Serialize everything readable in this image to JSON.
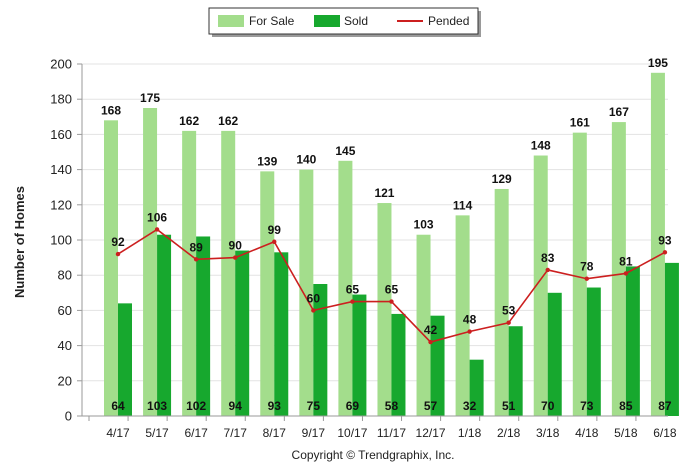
{
  "chart_data": {
    "type": "bar",
    "title": "",
    "xlabel": "",
    "ylabel": "Number of Homes",
    "ylim": [
      0,
      200
    ],
    "yticks": [
      0,
      20,
      40,
      60,
      80,
      100,
      120,
      140,
      160,
      180,
      200
    ],
    "grid": true,
    "legend_position": "top-center",
    "categories": [
      "4/17",
      "5/17",
      "6/17",
      "7/17",
      "8/17",
      "9/17",
      "10/17",
      "11/17",
      "12/17",
      "1/18",
      "2/18",
      "3/18",
      "4/18",
      "5/18",
      "6/18"
    ],
    "series": [
      {
        "name": "For Sale",
        "kind": "bar",
        "color": "#a3dd8c",
        "values": [
          168,
          175,
          162,
          162,
          139,
          140,
          145,
          121,
          103,
          114,
          129,
          148,
          161,
          167,
          195
        ]
      },
      {
        "name": "Sold",
        "kind": "bar",
        "color": "#17a82e",
        "values": [
          64,
          103,
          102,
          94,
          93,
          75,
          69,
          58,
          57,
          32,
          51,
          70,
          73,
          85,
          87
        ]
      },
      {
        "name": "Pended",
        "kind": "line",
        "color": "#cc1f1f",
        "values": [
          92,
          106,
          89,
          90,
          99,
          60,
          65,
          65,
          42,
          48,
          53,
          83,
          78,
          81,
          93
        ]
      }
    ],
    "footer": "Copyright © Trendgraphix, Inc."
  }
}
